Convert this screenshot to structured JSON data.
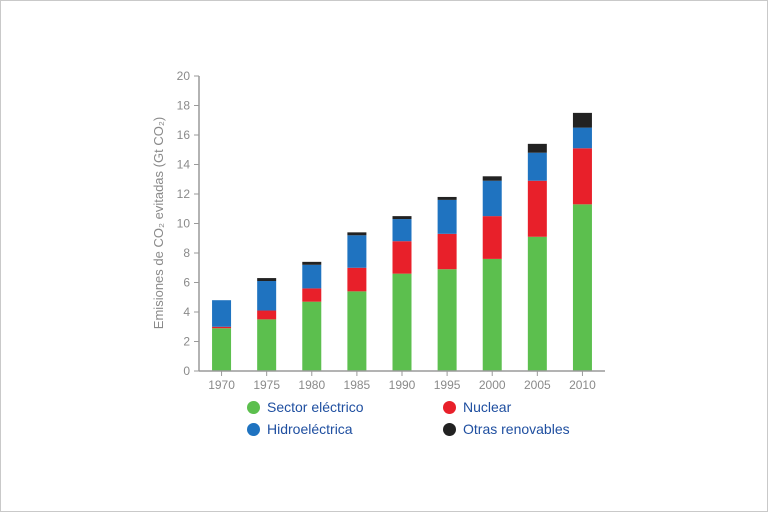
{
  "chart_data": {
    "type": "bar",
    "stacked": true,
    "categories": [
      "1970",
      "1975",
      "1980",
      "1985",
      "1990",
      "1995",
      "2000",
      "2005",
      "2010"
    ],
    "series": [
      {
        "name": "Sector eléctrico",
        "color": "#5cbf4e",
        "values": [
          2.9,
          3.5,
          4.7,
          5.4,
          6.6,
          6.9,
          7.6,
          9.1,
          11.3
        ]
      },
      {
        "name": "Nuclear",
        "color": "#e8202a",
        "values": [
          0.1,
          0.6,
          0.9,
          1.6,
          2.2,
          2.4,
          2.9,
          3.8,
          3.8
        ]
      },
      {
        "name": "Hidroeléctrica",
        "color": "#1f73c0",
        "values": [
          1.8,
          2.0,
          1.6,
          2.2,
          1.5,
          2.3,
          2.4,
          1.9,
          1.4
        ]
      },
      {
        "name": "Otras renovables",
        "color": "#222222",
        "values": [
          0.0,
          0.2,
          0.2,
          0.2,
          0.2,
          0.2,
          0.3,
          0.6,
          1.0
        ]
      }
    ],
    "ylabel": "Emisiones de CO₂ evitadas (Gt CO₂)",
    "ylim": [
      0,
      20
    ],
    "yticks": [
      0,
      2,
      4,
      6,
      8,
      10,
      12,
      14,
      16,
      18,
      20
    ],
    "grid": false,
    "legend_position": "bottom"
  }
}
